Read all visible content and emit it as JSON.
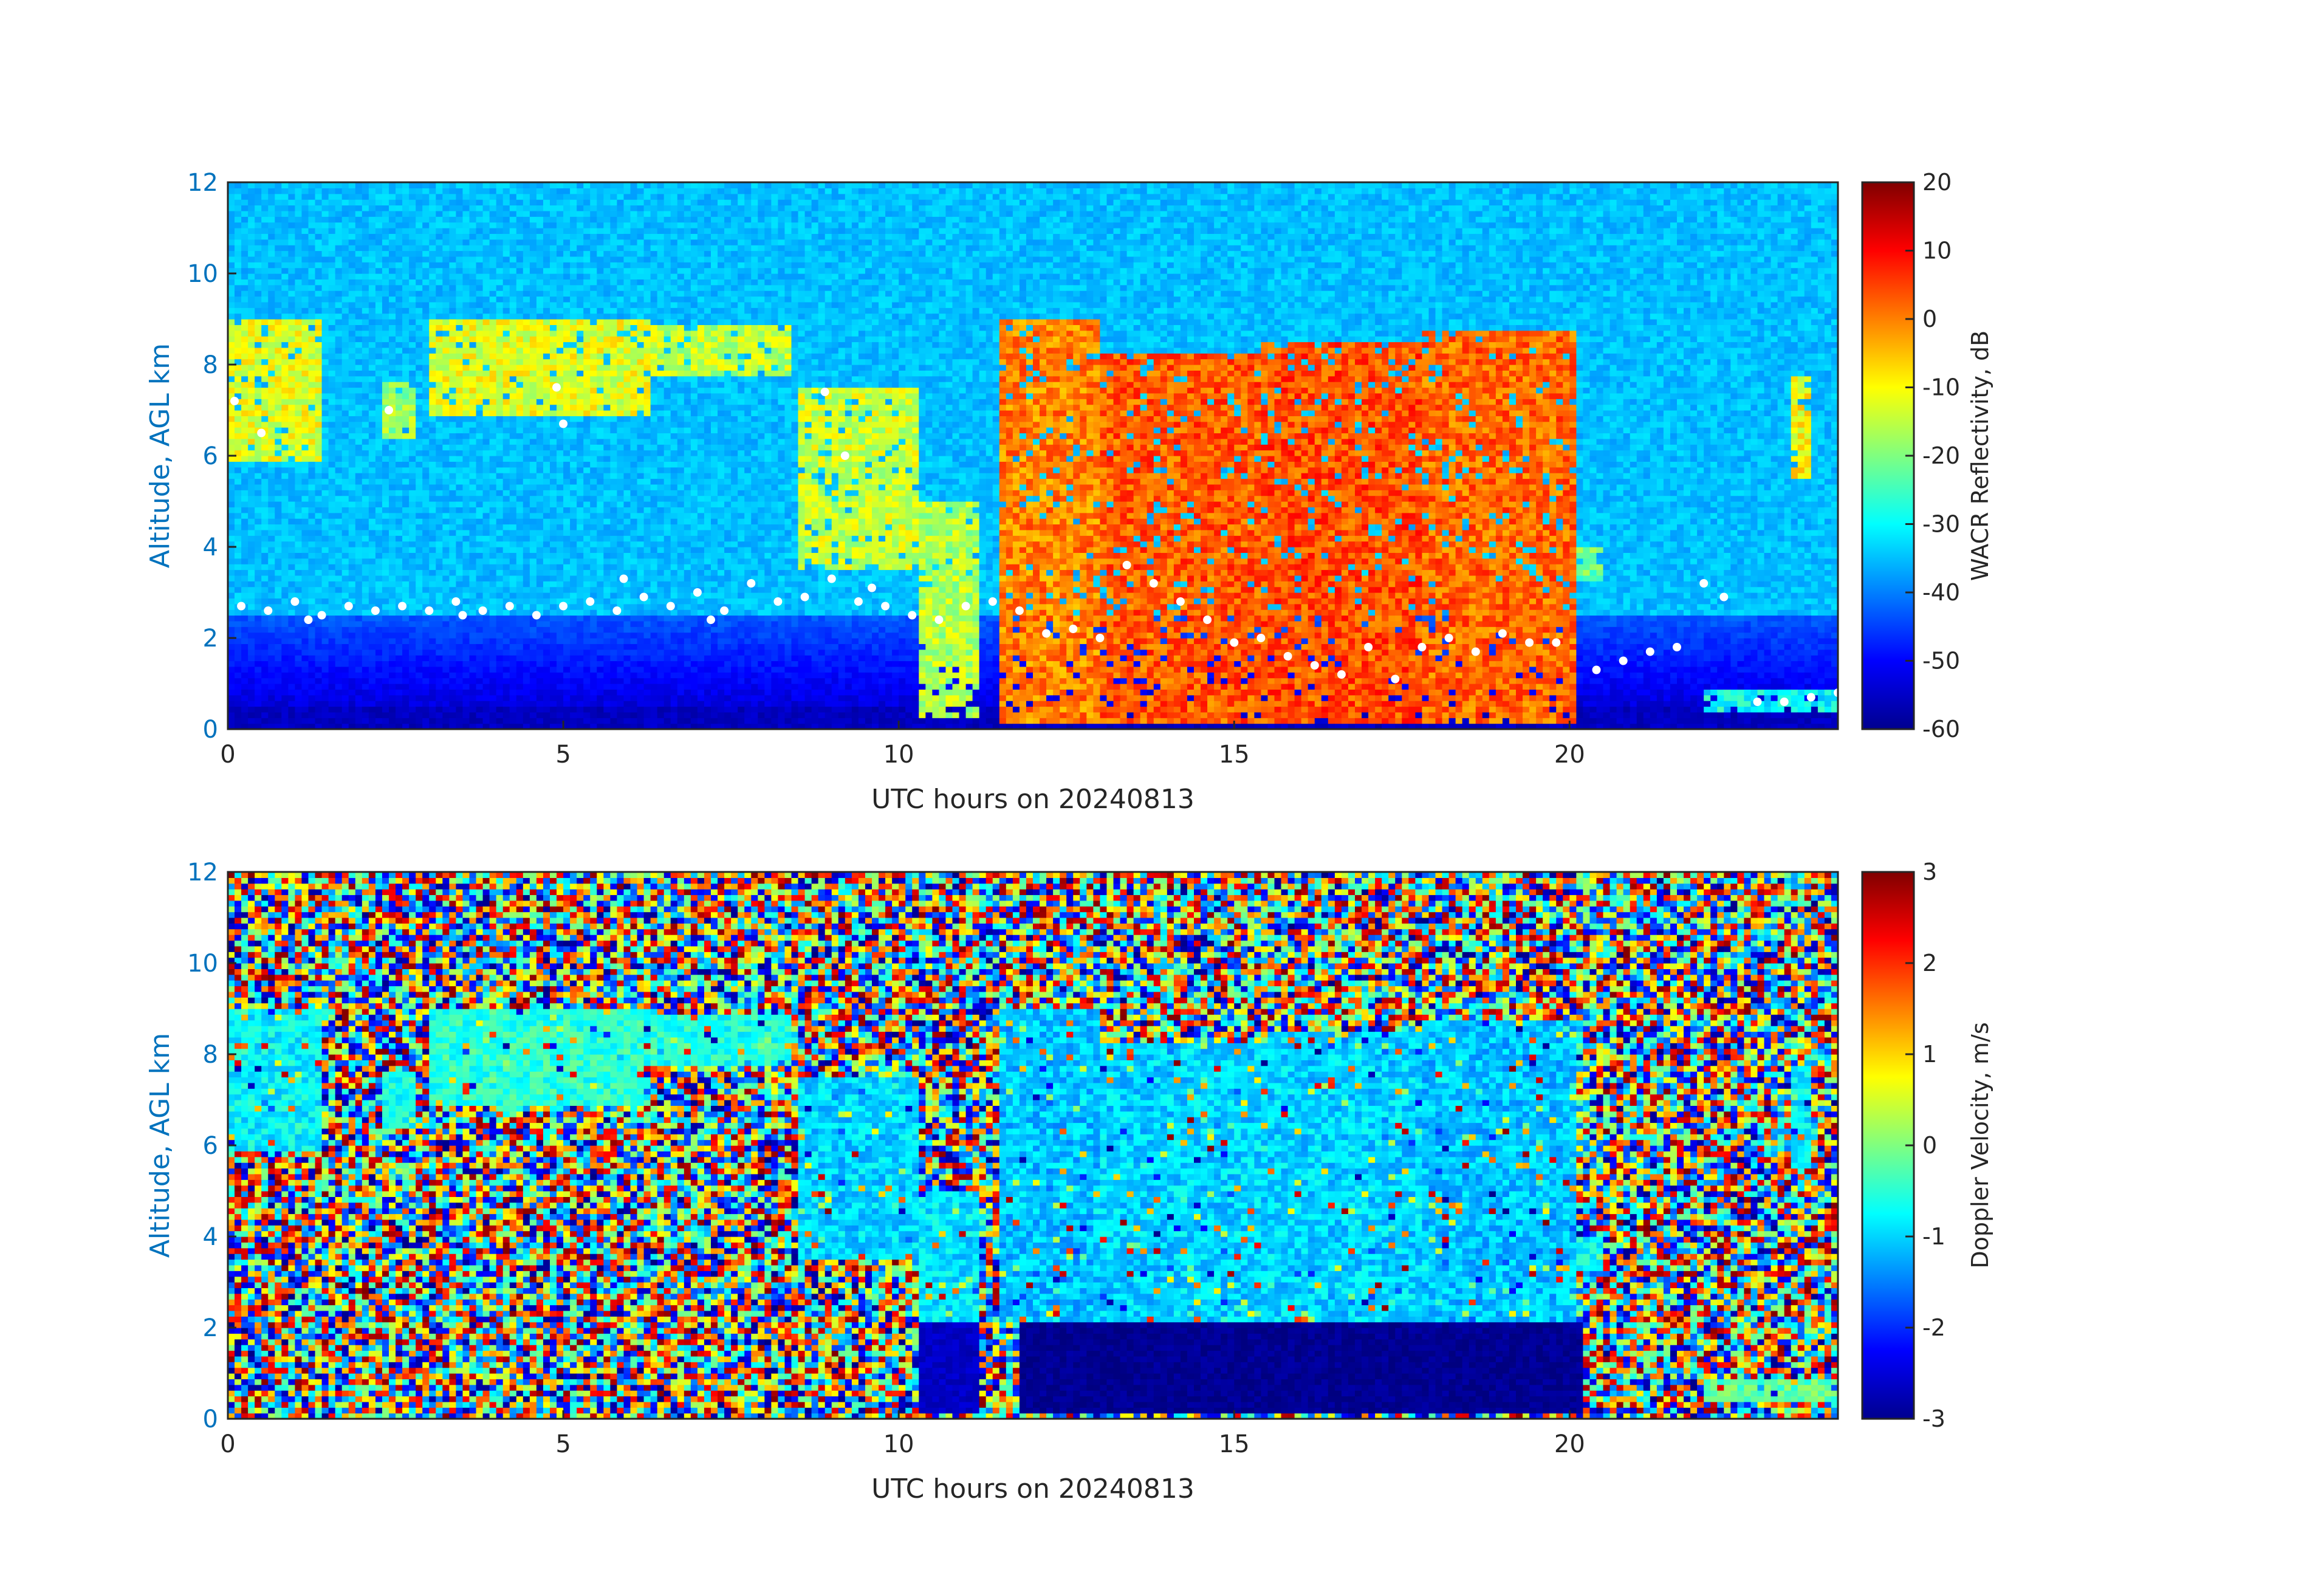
{
  "chart_data": [
    {
      "type": "heatmap",
      "title": "",
      "xlabel": "UTC hours on 20240813",
      "ylabel": "Altitude, AGL km",
      "xlim": [
        0,
        24
      ],
      "ylim": [
        0,
        12
      ],
      "xticks": [
        "0",
        "5",
        "10",
        "15",
        "20"
      ],
      "yticks": [
        "0",
        "2",
        "4",
        "6",
        "8",
        "10",
        "12"
      ],
      "colorbar": {
        "label": "WACR Reflectivity, dB",
        "range": [
          -60,
          20
        ],
        "ticks": [
          "-60",
          "-50",
          "-40",
          "-30",
          "-20",
          "-10",
          "0",
          "10",
          "20"
        ],
        "colormap": "jet"
      },
      "background_value": -35,
      "near_surface_value": -55,
      "cloud_regions": [
        {
          "t0": 0.0,
          "t1": 1.4,
          "base": 5.9,
          "top": 9.0,
          "value": -12
        },
        {
          "t0": 2.3,
          "t1": 2.8,
          "base": 6.4,
          "top": 7.6,
          "value": -18
        },
        {
          "t0": 3.0,
          "t1": 6.3,
          "base": 6.9,
          "top": 9.0,
          "value": -12
        },
        {
          "t0": 6.3,
          "t1": 8.4,
          "base": 7.7,
          "top": 8.9,
          "value": -15
        },
        {
          "t0": 8.5,
          "t1": 10.3,
          "base": 3.5,
          "top": 7.5,
          "value": -14
        },
        {
          "t0": 10.3,
          "t1": 11.2,
          "base": 0.2,
          "top": 5.0,
          "value": -16
        },
        {
          "t0": 11.5,
          "t1": 13.0,
          "base": 0.1,
          "top": 9.0,
          "value": 0
        },
        {
          "t0": 13.0,
          "t1": 15.4,
          "base": 0.1,
          "top": 8.2,
          "value": 3
        },
        {
          "t0": 15.4,
          "t1": 17.8,
          "base": 0.1,
          "top": 8.5,
          "value": 4
        },
        {
          "t0": 17.8,
          "t1": 20.1,
          "base": 0.1,
          "top": 8.7,
          "value": 2
        },
        {
          "t0": 20.1,
          "t1": 20.5,
          "base": 3.2,
          "top": 4.0,
          "value": -22
        },
        {
          "t0": 23.3,
          "t1": 23.6,
          "base": 5.5,
          "top": 7.8,
          "value": -10
        },
        {
          "t0": 22.0,
          "t1": 24.0,
          "base": 0.4,
          "top": 0.9,
          "value": -30
        }
      ],
      "markers": {
        "color": "#ffffff",
        "points": [
          [
            0.2,
            2.7
          ],
          [
            0.6,
            2.6
          ],
          [
            1.0,
            2.8
          ],
          [
            1.4,
            2.5
          ],
          [
            1.8,
            2.7
          ],
          [
            2.2,
            2.6
          ],
          [
            2.6,
            2.7
          ],
          [
            3.0,
            2.6
          ],
          [
            3.4,
            2.8
          ],
          [
            3.8,
            2.6
          ],
          [
            4.2,
            2.7
          ],
          [
            4.6,
            2.5
          ],
          [
            5.0,
            2.7
          ],
          [
            5.4,
            2.8
          ],
          [
            5.8,
            2.6
          ],
          [
            6.2,
            2.9
          ],
          [
            6.6,
            2.7
          ],
          [
            7.0,
            3.0
          ],
          [
            7.4,
            2.6
          ],
          [
            7.8,
            3.2
          ],
          [
            8.2,
            2.8
          ],
          [
            8.6,
            2.9
          ],
          [
            9.0,
            3.3
          ],
          [
            9.4,
            2.8
          ],
          [
            9.8,
            2.7
          ],
          [
            10.2,
            2.5
          ],
          [
            10.6,
            2.4
          ],
          [
            11.0,
            2.7
          ],
          [
            11.4,
            2.8
          ],
          [
            11.8,
            2.6
          ],
          [
            12.2,
            2.1
          ],
          [
            12.6,
            2.2
          ],
          [
            13.0,
            2.0
          ],
          [
            13.4,
            3.6
          ],
          [
            13.8,
            3.2
          ],
          [
            14.2,
            2.8
          ],
          [
            14.6,
            2.4
          ],
          [
            15.0,
            1.9
          ],
          [
            15.4,
            2.0
          ],
          [
            15.8,
            1.6
          ],
          [
            16.2,
            1.4
          ],
          [
            16.6,
            1.2
          ],
          [
            17.0,
            1.8
          ],
          [
            17.4,
            1.1
          ],
          [
            17.8,
            1.8
          ],
          [
            18.2,
            2.0
          ],
          [
            18.6,
            1.7
          ],
          [
            19.0,
            2.1
          ],
          [
            19.4,
            1.9
          ],
          [
            19.8,
            1.9
          ],
          [
            20.4,
            1.3
          ],
          [
            20.8,
            1.5
          ],
          [
            21.2,
            1.7
          ],
          [
            21.6,
            1.8
          ],
          [
            22.0,
            3.2
          ],
          [
            22.3,
            2.9
          ],
          [
            22.8,
            0.6
          ],
          [
            23.2,
            0.6
          ],
          [
            23.6,
            0.7
          ],
          [
            24.0,
            0.8
          ],
          [
            0.1,
            7.2
          ],
          [
            0.5,
            6.5
          ],
          [
            5.0,
            6.7
          ],
          [
            4.9,
            7.5
          ],
          [
            8.9,
            7.4
          ],
          [
            9.2,
            6.0
          ],
          [
            2.4,
            7.0
          ],
          [
            1.2,
            2.4
          ],
          [
            3.5,
            2.5
          ],
          [
            5.9,
            3.3
          ],
          [
            7.2,
            2.4
          ],
          [
            9.6,
            3.1
          ]
        ]
      }
    },
    {
      "type": "heatmap",
      "title": "",
      "xlabel": "UTC hours on 20240813",
      "ylabel": "Altitude, AGL km",
      "xlim": [
        0,
        24
      ],
      "ylim": [
        0,
        12
      ],
      "xticks": [
        "0",
        "5",
        "10",
        "15",
        "20"
      ],
      "yticks": [
        "0",
        "2",
        "4",
        "6",
        "8",
        "10",
        "12"
      ],
      "colorbar": {
        "label": "Doppler Velocity, m/s",
        "range": [
          -3,
          3
        ],
        "ticks": [
          "-3",
          "-2",
          "-1",
          "0",
          "1",
          "2",
          "3"
        ],
        "colormap": "jet"
      },
      "background_noise": [
        -3,
        3
      ],
      "cloud_regions": [
        {
          "t0": 0.0,
          "t1": 1.4,
          "base": 5.9,
          "top": 9.0,
          "value": -0.8
        },
        {
          "t0": 2.3,
          "t1": 2.8,
          "base": 6.4,
          "top": 7.6,
          "value": -0.6
        },
        {
          "t0": 3.0,
          "t1": 6.3,
          "base": 6.9,
          "top": 9.0,
          "value": -0.5
        },
        {
          "t0": 6.3,
          "t1": 8.4,
          "base": 7.7,
          "top": 8.9,
          "value": -0.6
        },
        {
          "t0": 8.5,
          "t1": 10.3,
          "base": 3.5,
          "top": 7.5,
          "value": -1.0
        },
        {
          "t0": 10.3,
          "t1": 11.2,
          "base": 2.1,
          "top": 5.0,
          "value": -0.9
        },
        {
          "t0": 11.5,
          "t1": 13.0,
          "base": 2.1,
          "top": 9.0,
          "value": -1.1
        },
        {
          "t0": 13.0,
          "t1": 15.4,
          "base": 2.1,
          "top": 8.2,
          "value": -1.0
        },
        {
          "t0": 15.4,
          "t1": 17.8,
          "base": 2.1,
          "top": 8.5,
          "value": -1.0
        },
        {
          "t0": 17.8,
          "t1": 20.1,
          "base": 2.1,
          "top": 8.7,
          "value": -1.1
        },
        {
          "t0": 20.1,
          "t1": 20.5,
          "base": 3.2,
          "top": 4.0,
          "value": -0.7
        },
        {
          "t0": 23.3,
          "t1": 23.6,
          "base": 5.5,
          "top": 7.8,
          "value": -0.8
        },
        {
          "t0": 22.0,
          "t1": 24.0,
          "base": 0.4,
          "top": 0.9,
          "value": -0.2
        }
      ],
      "rain_regions": [
        {
          "t0": 10.3,
          "t1": 11.2,
          "base": 0.1,
          "top": 2.1,
          "value": -2.6
        },
        {
          "t0": 11.8,
          "t1": 20.2,
          "base": 0.1,
          "top": 2.1,
          "value": -2.9
        }
      ]
    }
  ]
}
